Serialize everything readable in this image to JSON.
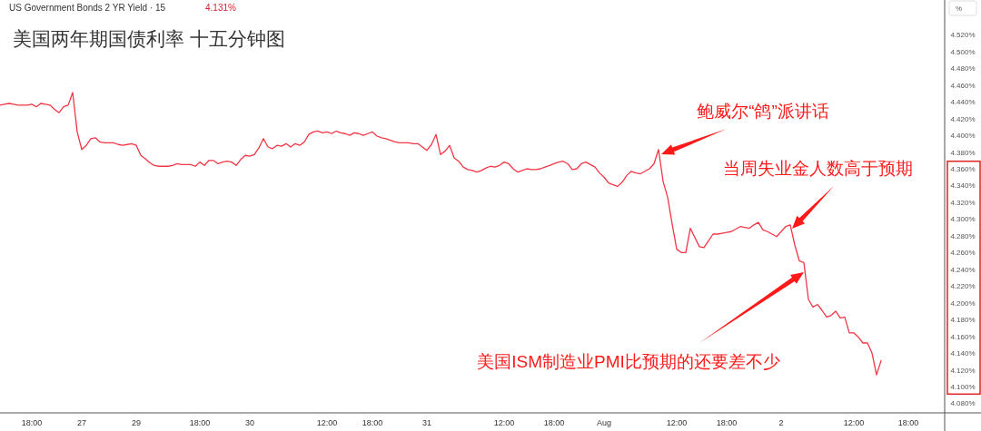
{
  "chart_data": {
    "type": "line",
    "title": "美国两年期国债利率 十五分钟图",
    "ylabel": "%",
    "color": "#f23645",
    "annotations": [
      "US Government Bonds 2 YR Yield · 15",
      "4.131%",
      "鲍威尔“鸽”派讲话",
      "当周失业金人数高于预期",
      "美国ISM制造业PMI比预期的还要差不少"
    ],
    "categories": [
      null,
      null,
      null,
      null,
      null,
      null,
      null,
      "18:00",
      null,
      null,
      null,
      null,
      null,
      null,
      null,
      null,
      null,
      null,
      "27",
      null,
      null,
      null,
      null,
      null,
      null,
      null,
      null,
      null,
      null,
      null,
      "29",
      null,
      null,
      null,
      null,
      null,
      null,
      null,
      null,
      null,
      null,
      null,
      null,
      null,
      "18:00",
      null,
      null,
      null,
      null,
      null,
      null,
      null,
      null,
      null,
      null,
      "30",
      null,
      null,
      null,
      null,
      null,
      null,
      null,
      null,
      null,
      null,
      null,
      null,
      null,
      null,
      null,
      null,
      "12:00",
      null,
      null,
      null,
      null,
      null,
      null,
      null,
      null,
      null,
      "18:00",
      null,
      null,
      null,
      null,
      null,
      null,
      null,
      null,
      null,
      null,
      null,
      "31",
      null,
      null,
      null,
      null,
      null,
      null,
      null,
      null,
      null,
      null,
      null,
      null,
      null,
      null,
      null,
      null,
      "12:00",
      null,
      null,
      null,
      null,
      null,
      null,
      null,
      null,
      null,
      null,
      "18:00",
      null,
      null,
      null,
      null,
      null,
      null,
      null,
      null,
      null,
      null,
      "Aug",
      null,
      null,
      null,
      null,
      null,
      null,
      null,
      null,
      null,
      null,
      null,
      null,
      null,
      null,
      null,
      "12:00",
      null,
      null,
      null,
      null,
      null,
      null,
      null,
      null,
      null,
      null,
      "18:00",
      null,
      null,
      null,
      null,
      null,
      null,
      null,
      null,
      null,
      null,
      null,
      "2",
      null,
      null,
      null,
      null,
      null,
      null,
      null,
      null,
      null,
      null,
      null,
      null,
      null,
      null,
      null,
      "12:00",
      null,
      null,
      null,
      null,
      null,
      null,
      null,
      null,
      null,
      null,
      null,
      "18:00",
      null,
      null,
      null,
      null,
      null,
      null,
      null
    ],
    "values": [
      4.436,
      4.437,
      4.438,
      4.437,
      4.436,
      4.436,
      4.436,
      4.437,
      4.434,
      4.438,
      4.437,
      4.436,
      4.431,
      4.427,
      4.434,
      4.436,
      4.451,
      4.404,
      4.383,
      4.388,
      4.396,
      4.397,
      4.392,
      4.391,
      4.391,
      4.391,
      4.389,
      4.388,
      4.389,
      4.39,
      4.388,
      4.376,
      4.372,
      4.367,
      4.364,
      4.363,
      4.363,
      4.363,
      4.364,
      4.366,
      4.365,
      4.365,
      4.365,
      4.363,
      4.368,
      4.364,
      4.37,
      4.37,
      4.366,
      4.368,
      4.369,
      4.368,
      4.364,
      4.371,
      4.376,
      4.375,
      4.377,
      4.385,
      4.396,
      4.386,
      4.384,
      4.388,
      4.387,
      4.39,
      4.386,
      4.39,
      4.388,
      4.392,
      4.401,
      4.404,
      4.405,
      4.403,
      4.404,
      4.402,
      4.405,
      4.403,
      4.402,
      4.4,
      4.403,
      4.402,
      4.4,
      4.402,
      4.404,
      4.399,
      4.397,
      4.396,
      4.394,
      4.392,
      4.391,
      4.391,
      4.391,
      4.39,
      4.39,
      4.386,
      4.382,
      4.389,
      4.401,
      4.377,
      4.381,
      4.388,
      4.373,
      4.369,
      4.362,
      4.359,
      4.358,
      4.356,
      4.358,
      4.361,
      4.363,
      4.362,
      4.364,
      4.368,
      4.366,
      4.36,
      4.356,
      4.358,
      4.36,
      4.359,
      4.359,
      4.36,
      4.362,
      4.364,
      4.366,
      4.368,
      4.369,
      4.366,
      4.359,
      4.36,
      4.366,
      4.368,
      4.365,
      4.362,
      4.355,
      4.35,
      4.343,
      4.341,
      4.339,
      4.344,
      4.352,
      4.357,
      4.355,
      4.354,
      4.357,
      4.36,
      4.366,
      4.383,
      4.345,
      4.326,
      4.294,
      4.264,
      4.26,
      4.26,
      4.289,
      4.278,
      4.267,
      4.266,
      4.274,
      4.282,
      4.282,
      4.283,
      4.284,
      4.285,
      4.288,
      4.291,
      4.29,
      4.289,
      4.293,
      4.296,
      4.287,
      4.285,
      4.282,
      4.279,
      4.285,
      4.291,
      4.293,
      4.269,
      4.25,
      4.248,
      4.204,
      4.195,
      4.198,
      4.191,
      4.183,
      4.185,
      4.19,
      4.182,
      4.183,
      4.164,
      4.164,
      4.159,
      4.152,
      4.152,
      4.14,
      4.114,
      4.131,
      null,
      null,
      null,
      null,
      null,
      null,
      null,
      null,
      null,
      null,
      null,
      null,
      null
    ],
    "ylim": [
      4.0686,
      4.5615
    ],
    "yticks": [
      {
        "value": 4.08,
        "label": "4.080%"
      },
      {
        "value": 4.1,
        "label": "4.100%"
      },
      {
        "value": 4.12,
        "label": "4.120%"
      },
      {
        "value": 4.14,
        "label": "4.140%"
      },
      {
        "value": 4.16,
        "label": "4.160%"
      },
      {
        "value": 4.18,
        "label": "4.180%"
      },
      {
        "value": 4.2,
        "label": "4.200%"
      },
      {
        "value": 4.22,
        "label": "4.220%"
      },
      {
        "value": 4.24,
        "label": "4.240%"
      },
      {
        "value": 4.26,
        "label": "4.260%"
      },
      {
        "value": 4.28,
        "label": "4.280%"
      },
      {
        "value": 4.3,
        "label": "4.300%"
      },
      {
        "value": 4.32,
        "label": "4.320%"
      },
      {
        "value": 4.34,
        "label": "4.340%"
      },
      {
        "value": 4.36,
        "label": "4.360%"
      },
      {
        "value": 4.38,
        "label": "4.380%"
      },
      {
        "value": 4.4,
        "label": "4.400%"
      },
      {
        "value": 4.42,
        "label": "4.420%"
      },
      {
        "value": 4.44,
        "label": "4.440%"
      },
      {
        "value": 4.46,
        "label": "4.460%"
      },
      {
        "value": 4.48,
        "label": "4.480%"
      },
      {
        "value": 4.5,
        "label": "4.500%"
      },
      {
        "value": 4.52,
        "label": "4.520%"
      }
    ],
    "marker": "none",
    "line_style": "solid",
    "grid": false
  }
}
